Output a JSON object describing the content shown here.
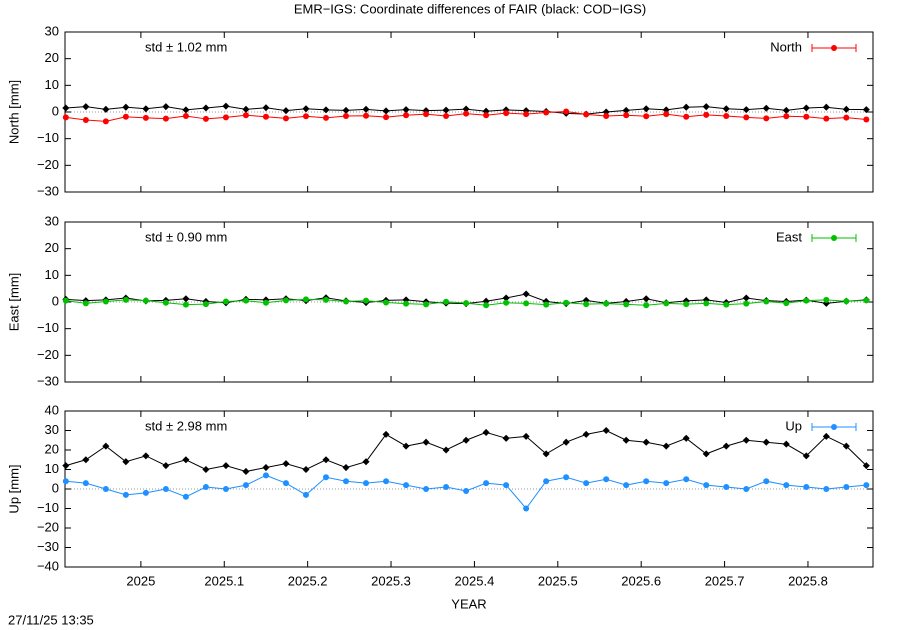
{
  "title": "EMR−IGS: Coordinate differences of FAIR (black: COD−IGS)",
  "timestamp": "27/11/25 13:35",
  "chart_data": [
    {
      "type": "line",
      "ylabel": "North [mm]",
      "annotation": "std ± 1.02 mm",
      "annotation_color": "#ff0000",
      "legend": "upper right",
      "xlim": [
        2024.909,
        2025.878
      ],
      "xticks": [
        2025,
        2025.1,
        2025.2,
        2025.3,
        2025.4,
        2025.5,
        2025.6,
        2025.7,
        2025.8
      ],
      "ylim": [
        -30,
        30
      ],
      "yticks": [
        {
          "value": -30,
          "label": "−30"
        },
        {
          "value": -20,
          "label": "−20"
        },
        {
          "value": -10,
          "label": "−10"
        },
        0,
        10,
        20,
        30
      ],
      "x": [
        2024.91,
        2024.934,
        2024.958,
        2024.982,
        2025.006,
        2025.03,
        2025.054,
        2025.078,
        2025.102,
        2025.126,
        2025.15,
        2025.174,
        2025.198,
        2025.222,
        2025.246,
        2025.27,
        2025.294,
        2025.318,
        2025.342,
        2025.366,
        2025.39,
        2025.414,
        2025.438,
        2025.462,
        2025.486,
        2025.51,
        2025.534,
        2025.558,
        2025.582,
        2025.606,
        2025.63,
        2025.654,
        2025.678,
        2025.702,
        2025.726,
        2025.75,
        2025.774,
        2025.798,
        2025.822,
        2025.846,
        2025.87
      ],
      "series": [
        {
          "color": "#000000",
          "values": [
            1.5,
            2,
            1,
            1.8,
            1.2,
            2,
            0.8,
            1.5,
            2.2,
            1,
            1.6,
            0.5,
            1.2,
            0.8,
            0.6,
            1,
            0.4,
            0.9,
            0.5,
            0.7,
            1.1,
            0.3,
            0.8,
            0.5,
            0.2,
            -0.5,
            -0.8,
            0,
            0.6,
            1.2,
            0.8,
            1.8,
            2,
            1.2,
            0.9,
            1.4,
            0.6,
            1.5,
            1.8,
            1,
            0.9
          ]
        },
        {
          "name": "North",
          "color": "#ff0000",
          "values": [
            -2,
            -3,
            -3.5,
            -1.8,
            -2.2,
            -2.5,
            -1.5,
            -2.6,
            -2,
            -1.2,
            -1.8,
            -2.4,
            -1.6,
            -2.2,
            -1.5,
            -1.4,
            -1.9,
            -1.2,
            -0.8,
            -1.5,
            -0.6,
            -1.2,
            -0.4,
            -0.8,
            -0.2,
            0.2,
            -0.9,
            -1.5,
            -1.2,
            -1.6,
            -0.8,
            -1.8,
            -1.1,
            -1.5,
            -2,
            -2.4,
            -1.6,
            -1.8,
            -2.5,
            -2.1,
            -2.8
          ]
        }
      ]
    },
    {
      "type": "line",
      "ylabel": "East [mm]",
      "annotation": "std ± 0.90 mm",
      "annotation_color": "#00c000",
      "legend": "upper right",
      "xlim": [
        2024.909,
        2025.878
      ],
      "xticks": [
        2025,
        2025.1,
        2025.2,
        2025.3,
        2025.4,
        2025.5,
        2025.6,
        2025.7,
        2025.8
      ],
      "ylim": [
        -30,
        30
      ],
      "yticks": [
        {
          "value": -30,
          "label": "−30"
        },
        {
          "value": -20,
          "label": "−20"
        },
        {
          "value": -10,
          "label": "−10"
        },
        0,
        10,
        20,
        30
      ],
      "x": [
        2024.91,
        2024.934,
        2024.958,
        2024.982,
        2025.006,
        2025.03,
        2025.054,
        2025.078,
        2025.102,
        2025.126,
        2025.15,
        2025.174,
        2025.198,
        2025.222,
        2025.246,
        2025.27,
        2025.294,
        2025.318,
        2025.342,
        2025.366,
        2025.39,
        2025.414,
        2025.438,
        2025.462,
        2025.486,
        2025.51,
        2025.534,
        2025.558,
        2025.582,
        2025.606,
        2025.63,
        2025.654,
        2025.678,
        2025.702,
        2025.726,
        2025.75,
        2025.774,
        2025.798,
        2025.822,
        2025.846,
        2025.87
      ],
      "series": [
        {
          "color": "#000000",
          "values": [
            1,
            0.5,
            0.8,
            1.5,
            0.4,
            0.6,
            1.2,
            0.2,
            -0.3,
            1,
            0.8,
            1.2,
            0.5,
            1.6,
            0.4,
            -0.2,
            0.6,
            0.8,
            0.1,
            -0.4,
            -0.6,
            0.3,
            1.5,
            3,
            0.2,
            -0.6,
            0.6,
            -0.5,
            0.2,
            1.2,
            -0.3,
            0.4,
            0.8,
            -0.2,
            1.5,
            0.5,
            0.2,
            0.7,
            -0.5,
            0.3,
            0.8
          ]
        },
        {
          "name": "East",
          "color": "#00c000",
          "values": [
            0.5,
            -0.5,
            0.2,
            0.8,
            0.5,
            -0.3,
            -1,
            -0.8,
            0.2,
            0.5,
            -0.3,
            0.6,
            1,
            0.8,
            0.2,
            0.5,
            -0.2,
            -0.6,
            -0.9,
            0.1,
            -0.4,
            -1.2,
            -0.3,
            -0.5,
            -1,
            -0.3,
            -0.8,
            -0.6,
            -0.9,
            -1.2,
            -0.5,
            -0.8,
            -0.5,
            -1,
            -0.6,
            0.2,
            -0.4,
            0.5,
            0.8,
            0.3,
            0.6
          ]
        }
      ]
    },
    {
      "type": "line",
      "ylabel": "Up [mm]",
      "xlabel": "YEAR",
      "annotation": "std ± 2.98 mm",
      "annotation_color": "#1e90ff",
      "legend": "upper right",
      "xlim": [
        2024.909,
        2025.878
      ],
      "xticks": [
        2025,
        2025.1,
        2025.2,
        2025.3,
        2025.4,
        2025.5,
        2025.6,
        2025.7,
        2025.8
      ],
      "ylim": [
        -40,
        40
      ],
      "yticks": [
        {
          "value": -40,
          "label": "−40"
        },
        {
          "value": -30,
          "label": "−30"
        },
        {
          "value": -20,
          "label": "−20"
        },
        {
          "value": -10,
          "label": "−10"
        },
        0,
        10,
        20,
        30,
        40
      ],
      "x": [
        2024.91,
        2024.934,
        2024.958,
        2024.982,
        2025.006,
        2025.03,
        2025.054,
        2025.078,
        2025.102,
        2025.126,
        2025.15,
        2025.174,
        2025.198,
        2025.222,
        2025.246,
        2025.27,
        2025.294,
        2025.318,
        2025.342,
        2025.366,
        2025.39,
        2025.414,
        2025.438,
        2025.462,
        2025.486,
        2025.51,
        2025.534,
        2025.558,
        2025.582,
        2025.606,
        2025.63,
        2025.654,
        2025.678,
        2025.702,
        2025.726,
        2025.75,
        2025.774,
        2025.798,
        2025.822,
        2025.846,
        2025.87
      ],
      "series": [
        {
          "color": "#000000",
          "values": [
            12,
            15,
            22,
            14,
            17,
            12,
            15,
            10,
            12,
            9,
            11,
            13,
            10,
            15,
            11,
            14,
            28,
            22,
            24,
            20,
            25,
            29,
            26,
            27,
            18,
            24,
            28,
            30,
            25,
            24,
            22,
            26,
            18,
            22,
            25,
            24,
            23,
            17,
            27,
            22,
            12
          ]
        },
        {
          "name": "Up",
          "color": "#1e90ff",
          "values": [
            4,
            3,
            0,
            -3,
            -2,
            0,
            -4,
            1,
            0,
            2,
            7,
            3,
            -3,
            6,
            4,
            3,
            4,
            2,
            0,
            1,
            -1,
            3,
            2,
            -10,
            4,
            6,
            3,
            5,
            2,
            4,
            3,
            5,
            2,
            1,
            0,
            4,
            2,
            1,
            0,
            1,
            2
          ]
        }
      ]
    }
  ]
}
